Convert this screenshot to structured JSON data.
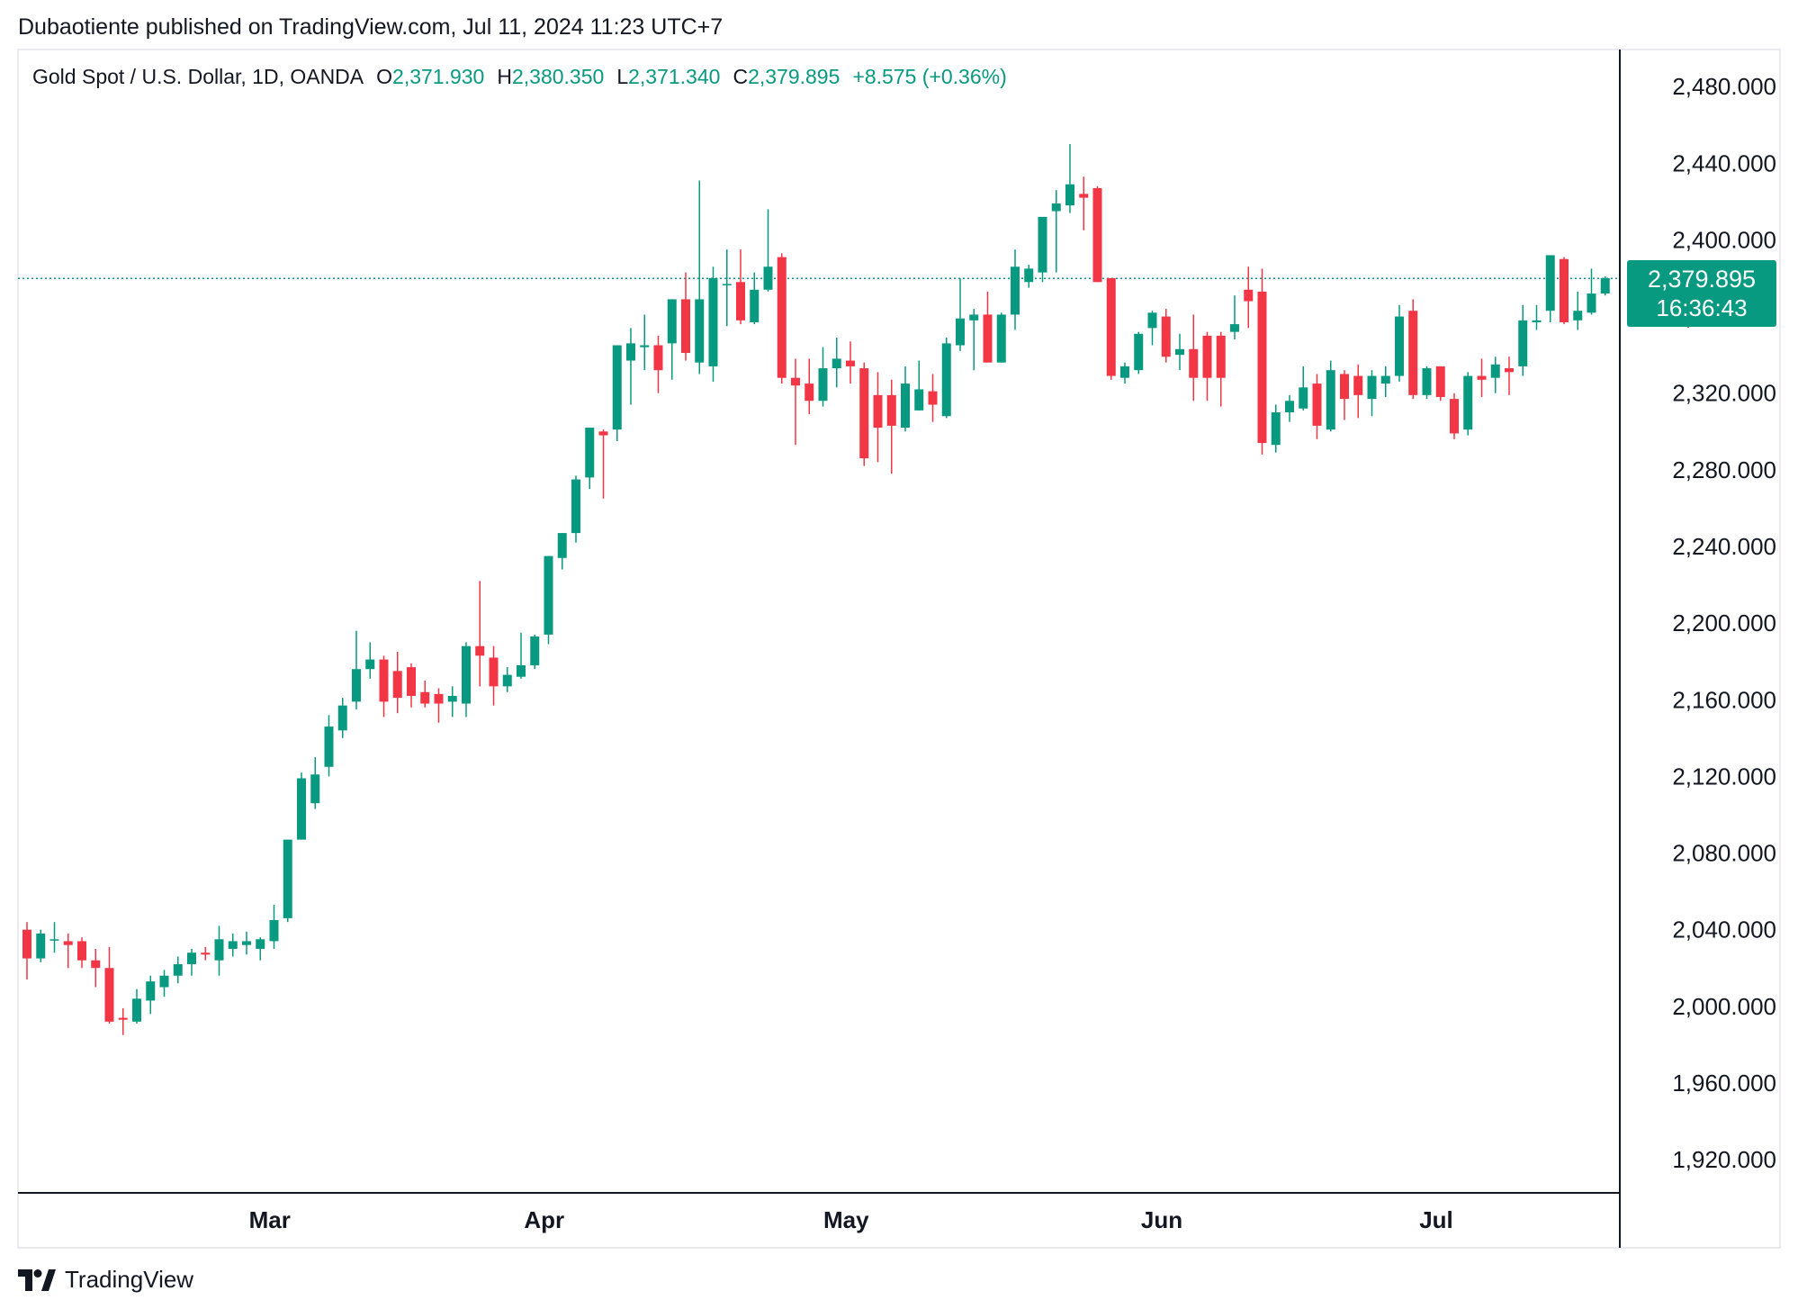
{
  "publish_line": "Dubaotiente published on TradingView.com, Jul 11, 2024 11:23 UTC+7",
  "legend": {
    "symbol": "Gold Spot / U.S. Dollar, 1D, OANDA",
    "open_label": "O",
    "open": "2,371.930",
    "high_label": "H",
    "high": "2,380.350",
    "low_label": "L",
    "low": "2,371.340",
    "close_label": "C",
    "close": "2,379.895",
    "change": "+8.575 (+0.36%)"
  },
  "price_badge": {
    "price": "2,379.895",
    "countdown": "16:36:43"
  },
  "footer": {
    "logo_icon": "tradingview-logo-icon",
    "brand": "TradingView"
  },
  "colors": {
    "up": "#089981",
    "down": "#F23645",
    "axis_text": "#131722",
    "last_price_line": "#089981"
  },
  "chart_data": {
    "type": "candlestick",
    "title": "Gold Spot / U.S. Dollar, 1D, OANDA",
    "ylim": [
      1905,
      2497
    ],
    "yticks": [
      2480,
      2440,
      2400,
      2360,
      2320,
      2280,
      2240,
      2200,
      2160,
      2120,
      2080,
      2040,
      2000,
      1960,
      1920
    ],
    "ytick_labels": [
      "2,480.000",
      "2,440.000",
      "2,400.000",
      "2,360.000",
      "2,320.000",
      "2,280.000",
      "2,240.000",
      "2,200.000",
      "2,160.000",
      "2,120.000",
      "2,080.000",
      "2,040.000",
      "2,000.000",
      "1,960.000",
      "1,920.000"
    ],
    "xticks": [
      {
        "label": "Mar",
        "bar_index": 19
      },
      {
        "label": "Apr",
        "bar_index": 39
      },
      {
        "label": "May",
        "bar_index": 61
      },
      {
        "label": "Jun",
        "bar_index": 84
      },
      {
        "label": "Jul",
        "bar_index": 104
      }
    ],
    "last_price": 2379.895,
    "grid": false,
    "candles": [
      [
        2040,
        2044,
        2014,
        2025
      ],
      [
        2025,
        2040,
        2023,
        2038
      ],
      [
        2035,
        2044,
        2028,
        2035
      ],
      [
        2034,
        2038,
        2020,
        2032
      ],
      [
        2034,
        2036,
        2020,
        2024
      ],
      [
        2024,
        2030,
        2010,
        2020
      ],
      [
        2020,
        2031,
        1991,
        1992
      ],
      [
        1994,
        1999,
        1985,
        1993
      ],
      [
        1992,
        2009,
        1991,
        2004
      ],
      [
        2003,
        2016,
        1996,
        2013
      ],
      [
        2010,
        2019,
        2005,
        2016
      ],
      [
        2016,
        2026,
        2012,
        2022
      ],
      [
        2022,
        2030,
        2016,
        2028
      ],
      [
        2028,
        2031,
        2024,
        2027
      ],
      [
        2024,
        2042,
        2016,
        2035
      ],
      [
        2030,
        2038,
        2026,
        2034
      ],
      [
        2032,
        2039,
        2027,
        2034
      ],
      [
        2030,
        2036,
        2024,
        2035
      ],
      [
        2034,
        2053,
        2030,
        2045
      ],
      [
        2046,
        2087,
        2044,
        2087
      ],
      [
        2087,
        2122,
        2087,
        2119
      ],
      [
        2106,
        2130,
        2103,
        2121
      ],
      [
        2125,
        2152,
        2120,
        2146
      ],
      [
        2144,
        2161,
        2140,
        2157
      ],
      [
        2159,
        2196,
        2155,
        2176
      ],
      [
        2176,
        2190,
        2171,
        2181
      ],
      [
        2181,
        2183,
        2151,
        2159
      ],
      [
        2175,
        2185,
        2153,
        2161
      ],
      [
        2177,
        2179,
        2156,
        2162
      ],
      [
        2164,
        2170,
        2156,
        2158
      ],
      [
        2163,
        2166,
        2148,
        2158
      ],
      [
        2159,
        2167,
        2151,
        2162
      ],
      [
        2158,
        2190,
        2151,
        2188
      ],
      [
        2188,
        2222,
        2167,
        2183
      ],
      [
        2182,
        2188,
        2157,
        2167
      ],
      [
        2167,
        2177,
        2164,
        2173
      ],
      [
        2172,
        2195,
        2171,
        2178
      ],
      [
        2178,
        2194,
        2176,
        2193
      ],
      [
        2194,
        2235,
        2189,
        2235
      ],
      [
        2234,
        2244,
        2228,
        2247
      ],
      [
        2247,
        2277,
        2242,
        2275
      ],
      [
        2276,
        2299,
        2270,
        2302
      ],
      [
        2300,
        2301,
        2265,
        2298
      ],
      [
        2301,
        2344,
        2295,
        2345
      ],
      [
        2337,
        2354,
        2314,
        2346
      ],
      [
        2344,
        2361,
        2332,
        2345
      ],
      [
        2345,
        2350,
        2320,
        2332
      ],
      [
        2346,
        2369,
        2327,
        2369
      ],
      [
        2369,
        2383,
        2337,
        2341
      ],
      [
        2336,
        2431,
        2330,
        2369
      ],
      [
        2334,
        2386,
        2326,
        2380
      ],
      [
        2377,
        2395,
        2355,
        2377
      ],
      [
        2378,
        2395,
        2356,
        2358
      ],
      [
        2357,
        2383,
        2356,
        2374
      ],
      [
        2374,
        2416,
        2373,
        2386
      ],
      [
        2391,
        2393,
        2325,
        2328
      ],
      [
        2328,
        2338,
        2293,
        2324
      ],
      [
        2325,
        2338,
        2309,
        2316
      ],
      [
        2316,
        2344,
        2313,
        2333
      ],
      [
        2333,
        2349,
        2323,
        2338
      ],
      [
        2337,
        2347,
        2325,
        2334
      ],
      [
        2333,
        2336,
        2282,
        2286
      ],
      [
        2319,
        2331,
        2284,
        2302
      ],
      [
        2319,
        2327,
        2278,
        2303
      ],
      [
        2302,
        2334,
        2300,
        2325
      ],
      [
        2311,
        2337,
        2311,
        2322
      ],
      [
        2321,
        2330,
        2305,
        2314
      ],
      [
        2308,
        2349,
        2307,
        2346
      ],
      [
        2345,
        2380,
        2342,
        2359
      ],
      [
        2358,
        2364,
        2332,
        2361
      ],
      [
        2361,
        2373,
        2336,
        2336
      ],
      [
        2336,
        2362,
        2336,
        2361
      ],
      [
        2361,
        2395,
        2353,
        2386
      ],
      [
        2378,
        2387,
        2375,
        2385
      ],
      [
        2383,
        2409,
        2378,
        2412
      ],
      [
        2415,
        2426,
        2383,
        2419
      ],
      [
        2418,
        2450,
        2414,
        2429
      ],
      [
        2424,
        2433,
        2405,
        2422
      ],
      [
        2427,
        2428,
        2378,
        2378
      ],
      [
        2380,
        2380,
        2327,
        2329
      ],
      [
        2328,
        2336,
        2325,
        2334
      ],
      [
        2332,
        2352,
        2330,
        2351
      ],
      [
        2354,
        2363,
        2345,
        2362
      ],
      [
        2360,
        2364,
        2336,
        2339
      ],
      [
        2340,
        2351,
        2332,
        2343
      ],
      [
        2343,
        2361,
        2316,
        2328
      ],
      [
        2350,
        2352,
        2316,
        2328
      ],
      [
        2350,
        2352,
        2313,
        2328
      ],
      [
        2352,
        2371,
        2348,
        2356
      ],
      [
        2374,
        2386,
        2354,
        2368
      ],
      [
        2373,
        2385,
        2288,
        2294
      ],
      [
        2293,
        2314,
        2289,
        2310
      ],
      [
        2310,
        2319,
        2305,
        2316
      ],
      [
        2312,
        2334,
        2311,
        2323
      ],
      [
        2325,
        2330,
        2296,
        2303
      ],
      [
        2301,
        2337,
        2300,
        2332
      ],
      [
        2330,
        2332,
        2306,
        2317
      ],
      [
        2329,
        2335,
        2307,
        2319
      ],
      [
        2317,
        2332,
        2308,
        2329
      ],
      [
        2325,
        2334,
        2318,
        2329
      ],
      [
        2329,
        2366,
        2326,
        2360
      ],
      [
        2363,
        2369,
        2317,
        2319
      ],
      [
        2319,
        2334,
        2317,
        2333
      ],
      [
        2334,
        2331,
        2316,
        2318
      ],
      [
        2317,
        2320,
        2296,
        2299
      ],
      [
        2301,
        2331,
        2298,
        2329
      ],
      [
        2329,
        2338,
        2318,
        2327
      ],
      [
        2328,
        2339,
        2320,
        2335
      ],
      [
        2333,
        2339,
        2319,
        2331
      ],
      [
        2334,
        2366,
        2329,
        2358
      ],
      [
        2357,
        2366,
        2353,
        2358
      ],
      [
        2363,
        2392,
        2357,
        2392
      ],
      [
        2390,
        2391,
        2356,
        2357
      ],
      [
        2358,
        2373,
        2353,
        2363
      ],
      [
        2362,
        2385,
        2361,
        2372
      ],
      [
        2372,
        2381,
        2371,
        2380
      ]
    ]
  }
}
